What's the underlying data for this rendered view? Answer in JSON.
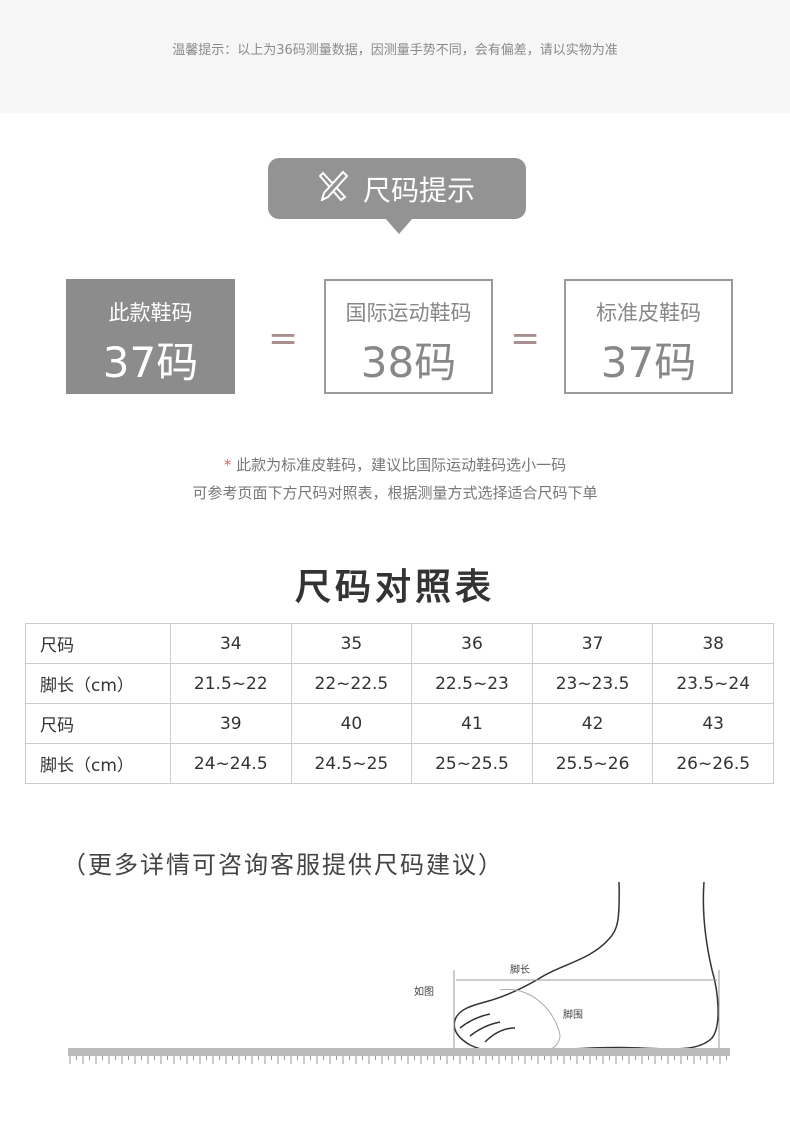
{
  "top_note": "温馨提示：以上为36码测量数据，因测量手势不同，会有偏差，请以实物为准",
  "badge": {
    "icon": "ruler-pencil-icon",
    "label": "尺码提示"
  },
  "boxes": [
    {
      "label": "此款鞋码",
      "size": "37码"
    },
    {
      "label": "国际运动鞋码",
      "size": "38码"
    },
    {
      "label": "标准皮鞋码",
      "size": "37码"
    }
  ],
  "equals": "=",
  "notes": {
    "star": "*",
    "line1": "此款为标准皮鞋码，建议比国际运动鞋码选小一码",
    "line2": "可参考页面下方尺码对照表，根据测量方式选择适合尺码下单"
  },
  "table_title": "尺码对照表",
  "table": [
    [
      "尺码",
      "34",
      "35",
      "36",
      "37",
      "38"
    ],
    [
      "脚长（cm）",
      "21.5~22",
      "22~22.5",
      "22.5~23",
      "23~23.5",
      "23.5~24"
    ],
    [
      "尺码",
      "39",
      "40",
      "41",
      "42",
      "43"
    ],
    [
      "脚长（cm）",
      "24~24.5",
      "24.5~25",
      "25~25.5",
      "25.5~26",
      "26~26.5"
    ]
  ],
  "more_note": "（更多详情可咨询客服提供尺码建议）",
  "diagram": {
    "foot_length": "脚长",
    "as_shown": "如图",
    "foot_girth": "脚围"
  }
}
